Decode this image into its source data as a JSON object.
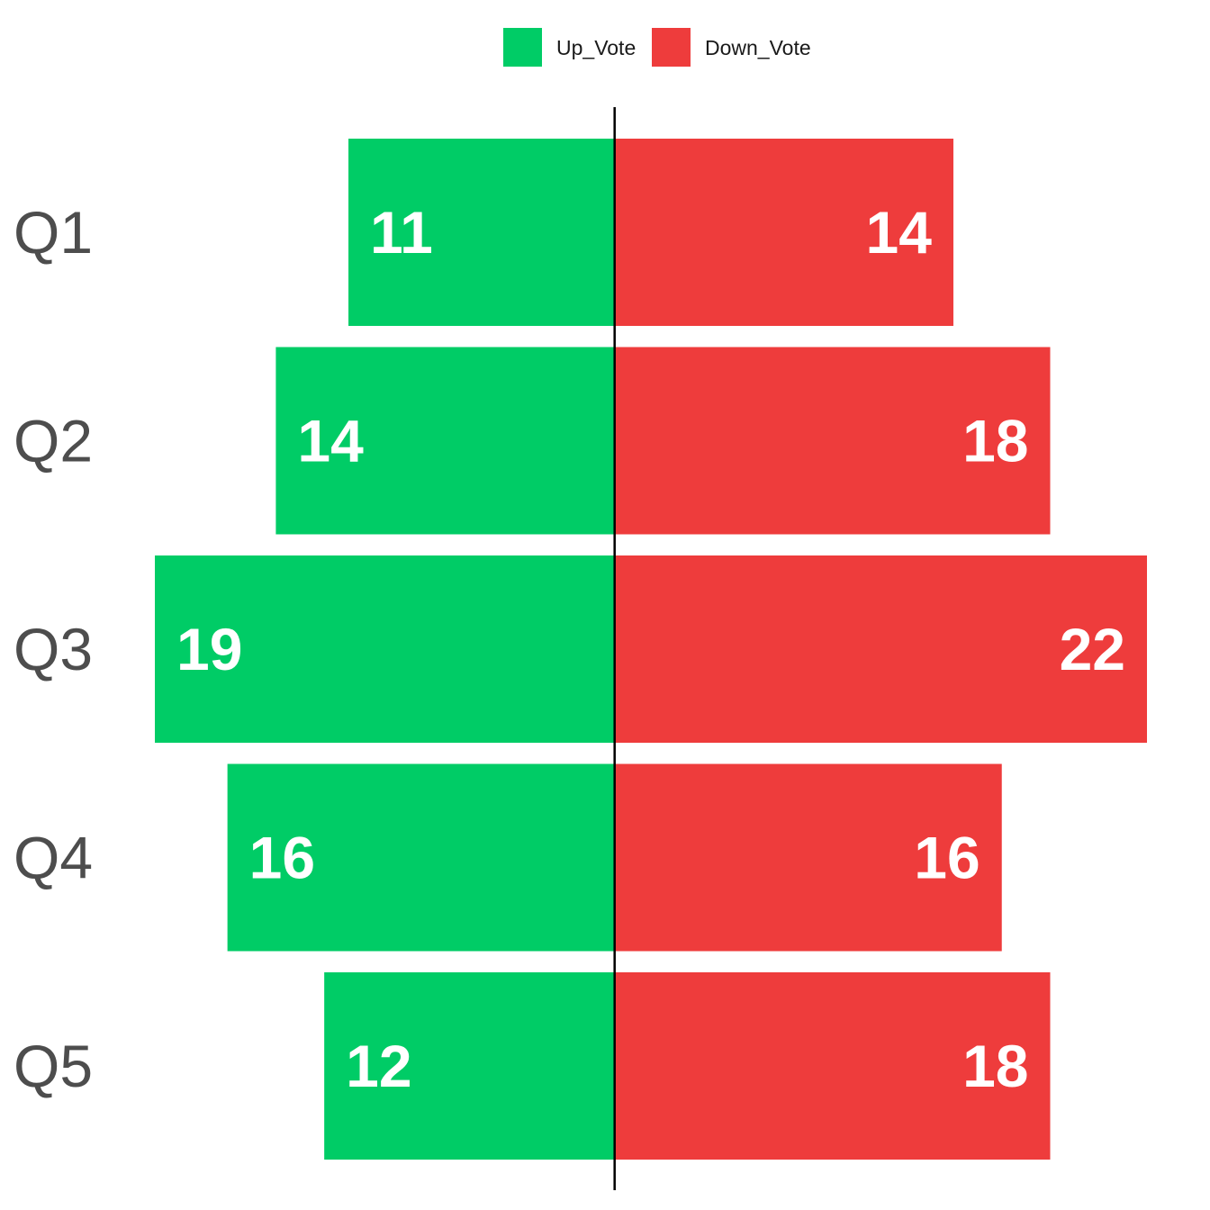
{
  "chart_data": {
    "type": "bar",
    "orientation": "diverging-horizontal",
    "categories": [
      "Q1",
      "Q2",
      "Q3",
      "Q4",
      "Q5"
    ],
    "series": [
      {
        "name": "Up_Vote",
        "values": [
          11,
          14,
          19,
          16,
          12
        ],
        "color": "#00cc66",
        "direction": "left"
      },
      {
        "name": "Down_Vote",
        "values": [
          14,
          18,
          22,
          16,
          18
        ],
        "color": "#ee3c3c",
        "direction": "right"
      }
    ],
    "xlim": [
      -19,
      22
    ],
    "grid": false,
    "legend": "top-center",
    "center_line_color": "#000000"
  }
}
